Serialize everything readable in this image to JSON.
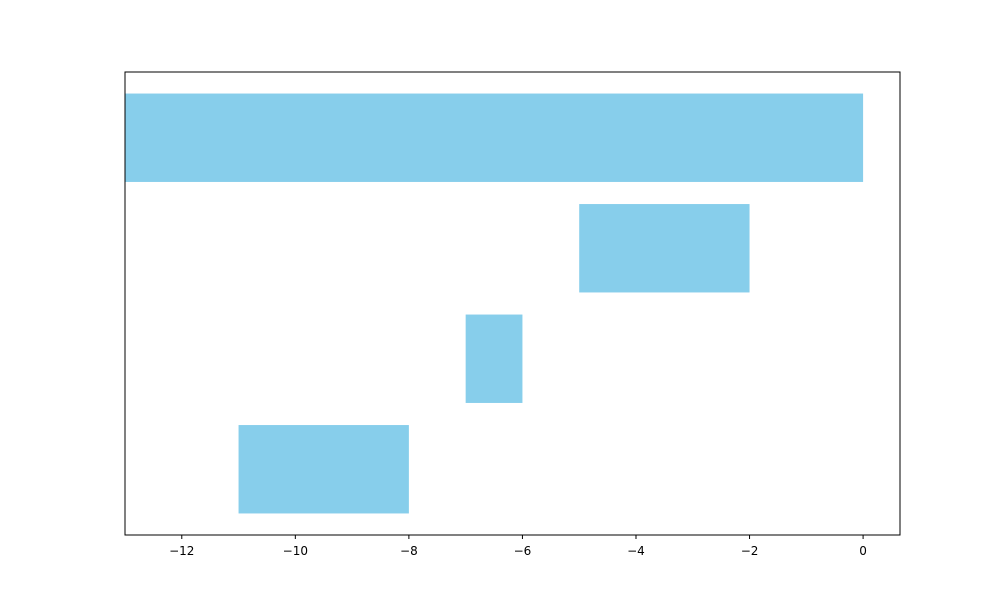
{
  "chart_data": {
    "type": "floating-barh",
    "color": "#87ceeb",
    "bars": [
      {
        "start": 0,
        "end": -13
      },
      {
        "start": -2,
        "end": -5
      },
      {
        "start": -6,
        "end": -7
      },
      {
        "start": -8,
        "end": -11
      }
    ],
    "xlim": [
      -13,
      0.65
    ],
    "xticks": [
      {
        "value": -12,
        "label": "−12"
      },
      {
        "value": -10,
        "label": "−10"
      },
      {
        "value": -8,
        "label": "−8"
      },
      {
        "value": -6,
        "label": "−6"
      },
      {
        "value": -4,
        "label": "−4"
      },
      {
        "value": -2,
        "label": "−2"
      },
      0
    ]
  }
}
